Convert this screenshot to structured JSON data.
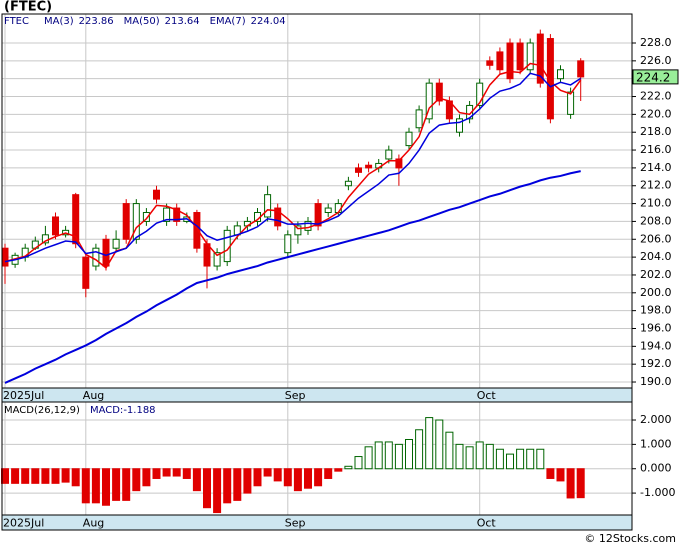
{
  "chart_data": [
    {
      "type": "candlestick",
      "title": "(FTEC)",
      "symbol": "FTEC",
      "categories": [
        "2025Jul",
        null,
        null,
        null,
        null,
        null,
        null,
        null,
        "Aug",
        null,
        null,
        null,
        null,
        null,
        null,
        null,
        null,
        null,
        null,
        null,
        null,
        null,
        null,
        null,
        null,
        null,
        null,
        null,
        "Sep",
        null,
        null,
        null,
        null,
        null,
        null,
        null,
        null,
        null,
        null,
        null,
        null,
        null,
        null,
        null,
        null,
        null,
        null,
        "Oct",
        null,
        null,
        null,
        null,
        null,
        null,
        null,
        null,
        null,
        null
      ],
      "open": [
        205,
        203.2,
        204,
        205,
        205.6,
        208.5,
        206.5,
        211,
        204,
        203,
        206,
        205,
        210,
        206,
        208,
        211.5,
        208,
        209.5,
        208,
        209,
        205.5,
        203,
        203.5,
        206.5,
        207.5,
        208,
        208.5,
        209.5,
        204.5,
        206.5,
        207,
        210,
        209,
        209,
        212,
        214,
        214.3,
        214,
        215,
        215,
        216.5,
        218.5,
        219.5,
        223.5,
        221.5,
        218,
        219.5,
        221,
        226,
        227,
        228,
        228,
        225,
        229,
        228.5,
        224,
        220,
        226
      ],
      "high": [
        205.5,
        204.5,
        205.5,
        206.3,
        207.5,
        209,
        207.5,
        211.2,
        204.3,
        205.5,
        206.5,
        207,
        210.5,
        210.5,
        209.5,
        212,
        210,
        210,
        209,
        209.3,
        206,
        205,
        207.5,
        208,
        208.5,
        209.5,
        212,
        210,
        207,
        208,
        208.5,
        210.5,
        210,
        210.5,
        213,
        214.5,
        214.7,
        215,
        216.5,
        215.5,
        218.5,
        221,
        224,
        224,
        222,
        220,
        221.5,
        224,
        226.5,
        227.5,
        228.5,
        228.5,
        228.5,
        229.5,
        229,
        225.5,
        223,
        226.3
      ],
      "low": [
        201,
        202.8,
        203.5,
        204.8,
        205.3,
        206,
        206.2,
        205,
        199.5,
        202.5,
        202.5,
        204.5,
        205.5,
        205.5,
        207.5,
        210,
        207.5,
        207.5,
        207.8,
        204.5,
        200.5,
        202.5,
        203,
        206,
        207,
        207.5,
        208,
        207,
        204,
        205.5,
        206.5,
        207,
        208.5,
        208.7,
        211.5,
        213,
        213.5,
        213.5,
        214.5,
        212,
        216,
        218,
        219,
        221,
        219,
        217.5,
        219,
        220.5,
        225,
        224.5,
        223.5,
        224.5,
        224.5,
        223,
        219,
        223.5,
        219.5,
        221.5
      ],
      "close": [
        203,
        204.2,
        205,
        205.8,
        206.5,
        206.5,
        207,
        205.5,
        200.5,
        205,
        203,
        206,
        206,
        210,
        209,
        210.5,
        209.5,
        208,
        208.5,
        205,
        203,
        204.5,
        207,
        207.5,
        208,
        209,
        211,
        207.5,
        206.5,
        207.5,
        208,
        207.5,
        209.5,
        210,
        212.5,
        213.5,
        214,
        214.5,
        216,
        214,
        218,
        220.5,
        223.5,
        221.5,
        219.5,
        219.5,
        221,
        223.5,
        225.5,
        225,
        224,
        225,
        228,
        223.5,
        219.5,
        225,
        222.5,
        224.2
      ],
      "last_label": "224.2",
      "last_label_color": "#99ee99",
      "up_color": "#006400",
      "down_color": "#e00000",
      "series": [
        {
          "name": "MA(3)",
          "color": "#ee0000",
          "width": 1.5,
          "values": [
            203.5,
            203.8,
            204.1,
            205.0,
            205.8,
            206.3,
            206.7,
            206.3,
            204.3,
            203.7,
            202.8,
            204.7,
            205.0,
            207.3,
            208.3,
            209.8,
            209.7,
            209.3,
            208.7,
            207.2,
            205.5,
            204.2,
            204.8,
            206.3,
            207.5,
            208.2,
            209.3,
            209.2,
            208.3,
            207.2,
            207.3,
            207.7,
            208.3,
            209.0,
            210.7,
            212.0,
            213.3,
            214.0,
            214.8,
            214.8,
            216.0,
            217.5,
            220.7,
            221.8,
            221.5,
            220.2,
            220.0,
            221.3,
            223.3,
            224.5,
            224.8,
            224.7,
            225.7,
            225.5,
            223.7,
            222.7,
            222.3,
            223.86
          ]
        },
        {
          "name": "MA(50)",
          "color": "#0000dd",
          "width": 2,
          "values": [
            189.9,
            190.4,
            190.9,
            191.5,
            192.0,
            192.5,
            193.1,
            193.6,
            194.1,
            194.7,
            195.4,
            196.0,
            196.6,
            197.3,
            197.9,
            198.6,
            199.2,
            199.8,
            200.5,
            201.1,
            201.4,
            201.7,
            202.1,
            202.4,
            202.7,
            203.0,
            203.4,
            203.7,
            204.0,
            204.3,
            204.6,
            204.9,
            205.2,
            205.5,
            205.8,
            206.1,
            206.4,
            206.7,
            207.0,
            207.4,
            207.8,
            208.1,
            208.5,
            208.9,
            209.3,
            209.6,
            210.0,
            210.4,
            210.8,
            211.1,
            211.5,
            211.9,
            212.2,
            212.6,
            212.9,
            213.1,
            213.4,
            213.64
          ]
        },
        {
          "name": "EMA(7)",
          "color": "#0000dd",
          "width": 1.5,
          "values": [
            203.5,
            203.7,
            204.0,
            204.5,
            205.0,
            205.4,
            205.8,
            205.7,
            204.4,
            204.6,
            204.2,
            204.6,
            205.0,
            206.2,
            206.9,
            207.8,
            208.2,
            208.2,
            208.3,
            207.5,
            206.4,
            205.9,
            206.2,
            206.5,
            206.9,
            207.4,
            208.3,
            208.1,
            207.7,
            207.7,
            207.8,
            207.7,
            208.1,
            208.6,
            209.6,
            210.6,
            211.4,
            212.2,
            213.2,
            213.4,
            214.5,
            216.0,
            217.9,
            218.8,
            219.0,
            219.1,
            219.6,
            220.6,
            221.8,
            222.6,
            222.9,
            223.4,
            224.6,
            224.3,
            223.1,
            223.6,
            223.3,
            224.04
          ]
        }
      ],
      "ylim": [
        189.33,
        231.25
      ],
      "yticks": [
        {
          "value": 190,
          "label": "190.0"
        },
        {
          "value": 192,
          "label": "192.0"
        },
        {
          "value": 194,
          "label": "194.0"
        },
        {
          "value": 196,
          "label": "196.0"
        },
        {
          "value": 198,
          "label": "198.0"
        },
        {
          "value": 200,
          "label": "200.0"
        },
        {
          "value": 202,
          "label": "202.0"
        },
        {
          "value": 204,
          "label": "204.0"
        },
        {
          "value": 206,
          "label": "206.0"
        },
        {
          "value": 208,
          "label": "208.0"
        },
        {
          "value": 210,
          "label": "210.0"
        },
        {
          "value": 212,
          "label": "212.0"
        },
        {
          "value": 214,
          "label": "214.0"
        },
        {
          "value": 216,
          "label": "216.0"
        },
        {
          "value": 218,
          "label": "218.0"
        },
        {
          "value": 220,
          "label": "220.0"
        },
        {
          "value": 222,
          "label": "222.0"
        },
        {
          "value": 224,
          "label": "224.0"
        },
        {
          "value": 226,
          "label": "226.0"
        },
        {
          "value": 228,
          "label": "228.0"
        }
      ],
      "grid": true
    },
    {
      "type": "bar",
      "title": "MACD(26,12,9)",
      "value_name": "MACD:",
      "categories": [
        "2025Jul",
        null,
        null,
        null,
        null,
        null,
        null,
        null,
        "Aug",
        null,
        null,
        null,
        null,
        null,
        null,
        null,
        null,
        null,
        null,
        null,
        null,
        null,
        null,
        null,
        null,
        null,
        null,
        null,
        "Sep",
        null,
        null,
        null,
        null,
        null,
        null,
        null,
        null,
        null,
        null,
        null,
        null,
        null,
        null,
        null,
        null,
        null,
        null,
        "Oct",
        null,
        null,
        null,
        null,
        null,
        null,
        null,
        null,
        null,
        null
      ],
      "values": [
        -0.6,
        -0.6,
        -0.6,
        -0.6,
        -0.6,
        -0.6,
        -0.55,
        -0.7,
        -1.4,
        -1.4,
        -1.5,
        -1.3,
        -1.3,
        -0.9,
        -0.7,
        -0.4,
        -0.3,
        -0.3,
        -0.4,
        -0.9,
        -1.6,
        -1.8,
        -1.4,
        -1.3,
        -1.0,
        -0.7,
        -0.3,
        -0.5,
        -0.7,
        -0.9,
        -0.8,
        -0.7,
        -0.4,
        -0.1,
        0.1,
        0.5,
        0.9,
        1.1,
        1.1,
        1.0,
        1.2,
        1.6,
        2.1,
        2.0,
        1.5,
        1.0,
        0.9,
        1.1,
        1.0,
        0.8,
        0.6,
        0.8,
        0.8,
        0.8,
        -0.4,
        -0.5,
        -1.2,
        -1.188
      ],
      "up_color": "#006400",
      "down_color": "#e00000",
      "ylim": [
        -1.9,
        2.74
      ],
      "yticks": [
        {
          "value": -1,
          "label": "-1.000"
        },
        {
          "value": 0,
          "label": "0.000"
        },
        {
          "value": 1,
          "label": "1.000"
        },
        {
          "value": 2,
          "label": "2.000"
        }
      ],
      "grid": true
    }
  ],
  "footer": "© 12Stocks.com"
}
